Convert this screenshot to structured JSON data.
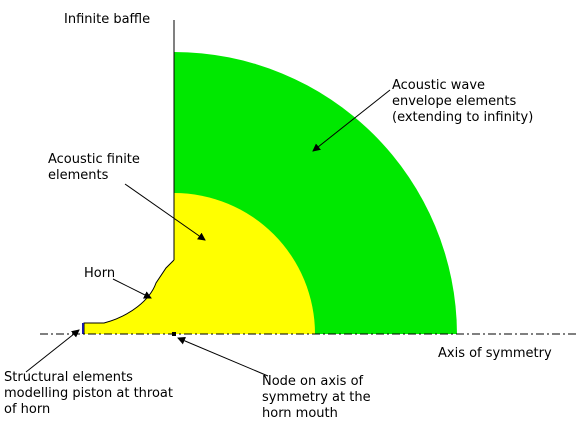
{
  "labels": {
    "infinite_baffle": "Infinite baffle",
    "envelope": "Acoustic wave\nenvelope elements\n(extending to infinity)",
    "finite_elements": "Acoustic finite\nelements",
    "horn": "Horn",
    "axis": "Axis of symmetry",
    "structural": "Structural elements\nmodelling piston at throat\nof horn",
    "node": "Node on axis of\nsymmetry at the\nhorn mouth"
  },
  "colors": {
    "envelope_region": "#00e800",
    "finite_region": "#ffff00",
    "piston": "#1a1aa8",
    "lines": "#000000"
  }
}
